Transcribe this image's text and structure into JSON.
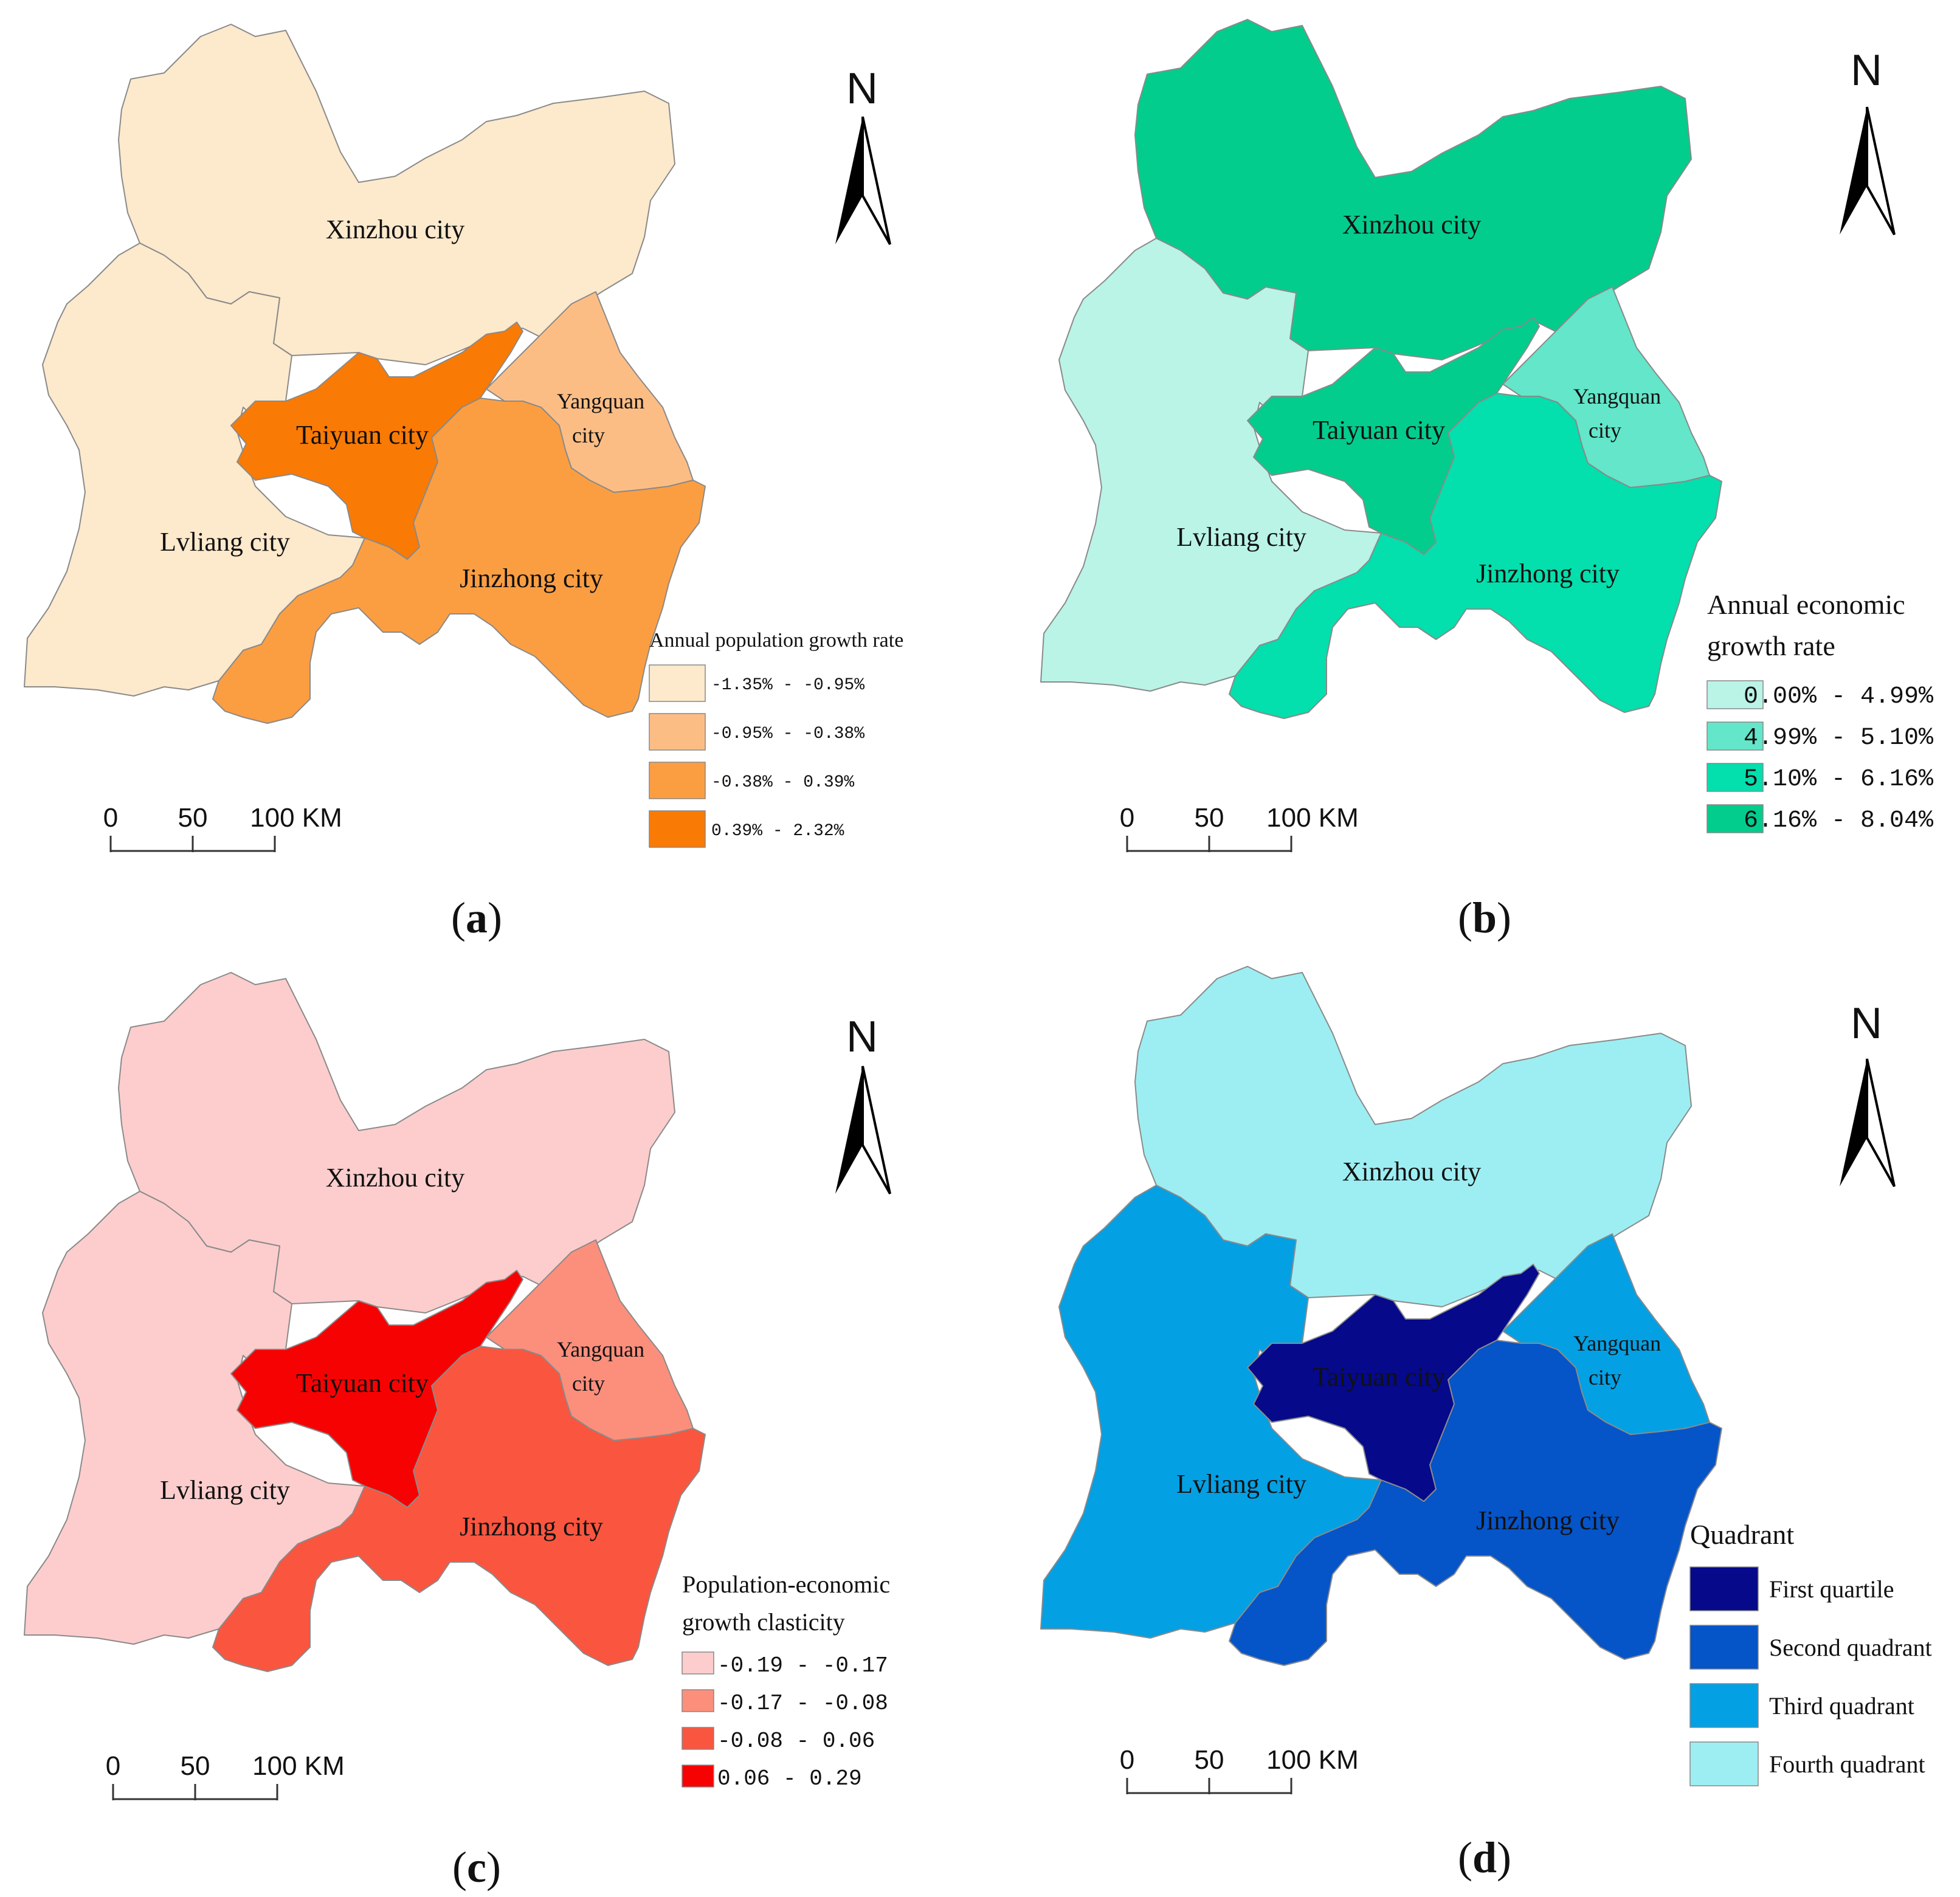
{
  "panels": [
    {
      "id": "a",
      "label": "a",
      "legend_title": [
        "Annual population growth rate"
      ],
      "legend_items": [
        "-1.35% - -0.95%",
        "-0.95% - -0.38%",
        "-0.38% - 0.39%",
        "0.39% - 2.32%"
      ],
      "legend_colors": [
        "#fde9cc",
        "#fcbd85",
        "#fb9e42",
        "#f97a04"
      ],
      "region_class": {
        "xinzhou": 0,
        "lvliang": 0,
        "yangquan": 1,
        "jinzhong": 2,
        "taiyuan": 3
      }
    },
    {
      "id": "b",
      "label": "b",
      "legend_title": [
        "Annual economic",
        "growth rate"
      ],
      "legend_items": [
        "0.00% - 4.99%",
        "4.99% - 5.10%",
        "5.10% - 6.16%",
        "6.16% - 8.04%"
      ],
      "legend_colors": [
        "#b9f4e7",
        "#63e6c9",
        "#03dfad",
        "#02cd8c"
      ],
      "region_class": {
        "xinzhou": 3,
        "lvliang": 0,
        "yangquan": 1,
        "jinzhong": 2,
        "taiyuan": 3
      }
    },
    {
      "id": "c",
      "label": "c",
      "legend_title": [
        "Population-economic",
        "growth clasticity"
      ],
      "legend_items": [
        "-0.19 - -0.17",
        "-0.17 - -0.08",
        "-0.08 - 0.06",
        "0.06 - 0.29"
      ],
      "legend_colors": [
        "#fdcdcd",
        "#fb8f7c",
        "#fa553f",
        "#f70202"
      ],
      "region_class": {
        "xinzhou": 0,
        "lvliang": 0,
        "yangquan": 1,
        "jinzhong": 2,
        "taiyuan": 3
      }
    },
    {
      "id": "d",
      "label": "d",
      "legend_title": [
        "Quadrant"
      ],
      "legend_items": [
        "First quartile",
        "Second quadrant",
        "Third quadrant",
        "Fourth quadrant"
      ],
      "legend_colors": [
        "#05098a",
        "#0554c8",
        "#03a0e4",
        "#9deef2"
      ],
      "region_class": {
        "xinzhou": 3,
        "lvliang": 2,
        "yangquan": 2,
        "jinzhong": 1,
        "taiyuan": 0
      }
    }
  ],
  "cities": {
    "xinzhou": "Xinzhou city",
    "lvliang": "Lvliang city",
    "taiyuan": "Taiyuan city",
    "yangquan_line1": "Yangquan",
    "yangquan_line2": "city",
    "jinzhong": "Jinzhong city"
  },
  "north_label": "N",
  "scale_labels": [
    "0",
    "50",
    "100 KM"
  ]
}
